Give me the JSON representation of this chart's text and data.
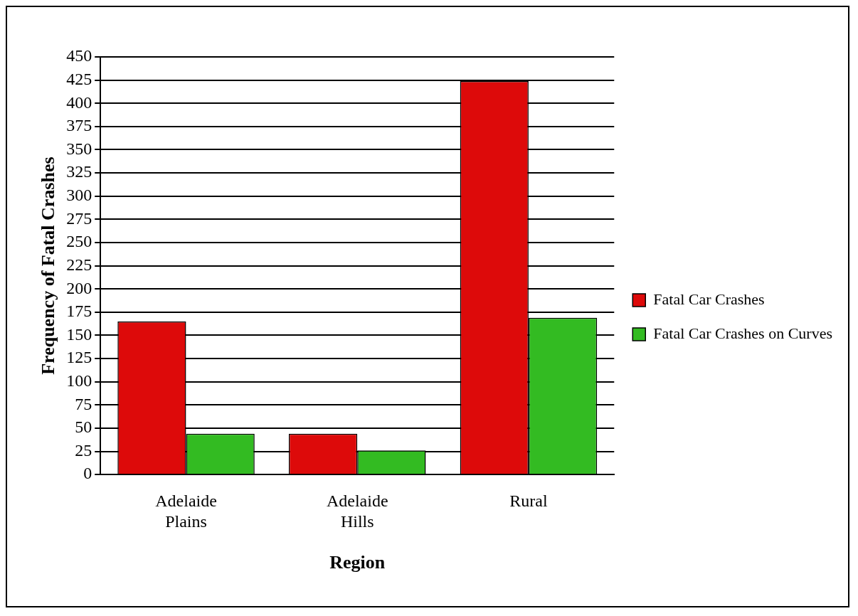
{
  "chart_data": {
    "type": "bar",
    "xlabel": "Region",
    "ylabel": "Frequency of Fatal Crashes",
    "categories": [
      "Adelaide Plains",
      "Adelaide Hills",
      "Rural"
    ],
    "series": [
      {
        "name": "Fatal Car Crashes",
        "color": "#dd0a0a",
        "values": [
          165,
          44,
          424
        ]
      },
      {
        "name": "Fatal Car Crashes on Curves",
        "color": "#33bb22",
        "values": [
          44,
          26,
          169
        ]
      }
    ],
    "ylim": [
      0,
      450
    ],
    "yticks": [
      0,
      25,
      50,
      75,
      100,
      125,
      150,
      175,
      200,
      225,
      250,
      275,
      300,
      325,
      350,
      375,
      400,
      425,
      450
    ],
    "grid": "y",
    "legend": "right"
  }
}
